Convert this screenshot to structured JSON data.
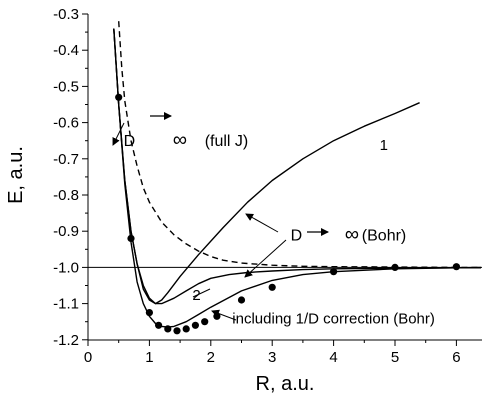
{
  "chart_data": {
    "type": "line",
    "xlabel": "R, a.u.",
    "ylabel": "E, a.u.",
    "xlim": [
      0,
      6.5
    ],
    "ylim": [
      -1.2,
      -0.3
    ],
    "xticks": [
      0,
      1,
      2,
      3,
      4,
      5,
      6
    ],
    "yticks": [
      -0.3,
      -0.4,
      -0.5,
      -0.6,
      -0.7,
      -0.8,
      -0.9,
      -1.0,
      -1.1,
      -1.2
    ],
    "ytick_labels": [
      "-0.3",
      "-0.4",
      "-0.5",
      "-0.6",
      "-0.7",
      "-0.8",
      "-0.9",
      "-1.0",
      "-1.1",
      "-1.2"
    ],
    "grid": false,
    "reference_line": {
      "y": -1.0
    },
    "series": [
      {
        "name": "1",
        "style": "solid",
        "x": [
          0.42,
          0.5,
          0.6,
          0.7,
          0.8,
          0.9,
          1.0,
          1.1,
          1.2,
          1.3,
          1.5,
          1.8,
          2.2,
          2.6,
          3.0,
          3.5,
          4.0,
          4.5,
          5.0,
          5.4
        ],
        "y": [
          -0.34,
          -0.55,
          -0.76,
          -0.9,
          -0.99,
          -1.06,
          -1.09,
          -1.1,
          -1.09,
          -1.07,
          -1.025,
          -0.965,
          -0.89,
          -0.82,
          -0.76,
          -0.7,
          -0.65,
          -0.61,
          -0.575,
          -0.545
        ]
      },
      {
        "name": "2",
        "style": "solid",
        "x": [
          0.42,
          0.5,
          0.6,
          0.7,
          0.8,
          0.9,
          1.0,
          1.1,
          1.2,
          1.4,
          1.6,
          1.8,
          2.0,
          2.3,
          2.6,
          3.0,
          3.5,
          4.0,
          5.0,
          6.0,
          6.4
        ],
        "y": [
          -0.34,
          -0.55,
          -0.76,
          -0.9,
          -0.99,
          -1.05,
          -1.085,
          -1.1,
          -1.1,
          -1.085,
          -1.065,
          -1.045,
          -1.03,
          -1.02,
          -1.014,
          -1.01,
          -1.006,
          -1.004,
          -1.002,
          -1.001,
          -1.001
        ]
      },
      {
        "name": "including 1/D correction (Bohr)",
        "style": "solid",
        "x": [
          0.42,
          0.5,
          0.6,
          0.7,
          0.8,
          0.9,
          1.0,
          1.1,
          1.2,
          1.3,
          1.4,
          1.6,
          1.8,
          2.0,
          2.5,
          3.0,
          3.5,
          4.0,
          5.0,
          6.0,
          6.4
        ],
        "y": [
          -0.34,
          -0.55,
          -0.77,
          -0.93,
          -1.04,
          -1.1,
          -1.135,
          -1.155,
          -1.163,
          -1.165,
          -1.163,
          -1.15,
          -1.13,
          -1.11,
          -1.065,
          -1.036,
          -1.02,
          -1.012,
          -1.004,
          -1.001,
          -1.0
        ]
      },
      {
        "name": "D → ∞ (full J)",
        "style": "dashed",
        "x": [
          0.5,
          0.55,
          0.6,
          0.7,
          0.8,
          0.9,
          1.0,
          1.2,
          1.4,
          1.6,
          1.8,
          2.0,
          2.2,
          2.5,
          3.0,
          3.5,
          4.0,
          5.0,
          6.0,
          6.4
        ],
        "y": [
          -0.32,
          -0.45,
          -0.54,
          -0.65,
          -0.72,
          -0.78,
          -0.82,
          -0.875,
          -0.91,
          -0.935,
          -0.955,
          -0.97,
          -0.98,
          -0.988,
          -0.994,
          -0.997,
          -0.998,
          -0.999,
          -1.0,
          -1.0
        ]
      }
    ],
    "points": {
      "x": [
        0.5,
        0.7,
        1.0,
        1.15,
        1.3,
        1.45,
        1.6,
        1.75,
        1.9,
        2.1,
        2.5,
        3.0,
        4.0,
        5.0,
        6.0
      ],
      "y": [
        -0.53,
        -0.92,
        -1.125,
        -1.16,
        -1.17,
        -1.175,
        -1.17,
        -1.16,
        -1.15,
        -1.135,
        -1.09,
        -1.055,
        -1.012,
        -1.0,
        -0.998
      ]
    },
    "annotations": [
      {
        "text": "D",
        "x": 0.58,
        "y": -0.665
      },
      {
        "text": "∞",
        "x": 1.38,
        "y": -0.665
      },
      {
        "text": "(full J)",
        "x": 1.9,
        "y": -0.665
      },
      {
        "text": "1",
        "x": 4.75,
        "y": -0.675
      },
      {
        "text": "D",
        "x": 3.3,
        "y": -0.925
      },
      {
        "text": "∞",
        "x": 4.18,
        "y": -0.925
      },
      {
        "text": "(Bohr)",
        "x": 4.46,
        "y": -0.925
      },
      {
        "text": "2",
        "x": 1.7,
        "y": -1.09
      },
      {
        "text": "including 1/D correction (Bohr)",
        "x": 2.35,
        "y": -1.155
      }
    ]
  }
}
